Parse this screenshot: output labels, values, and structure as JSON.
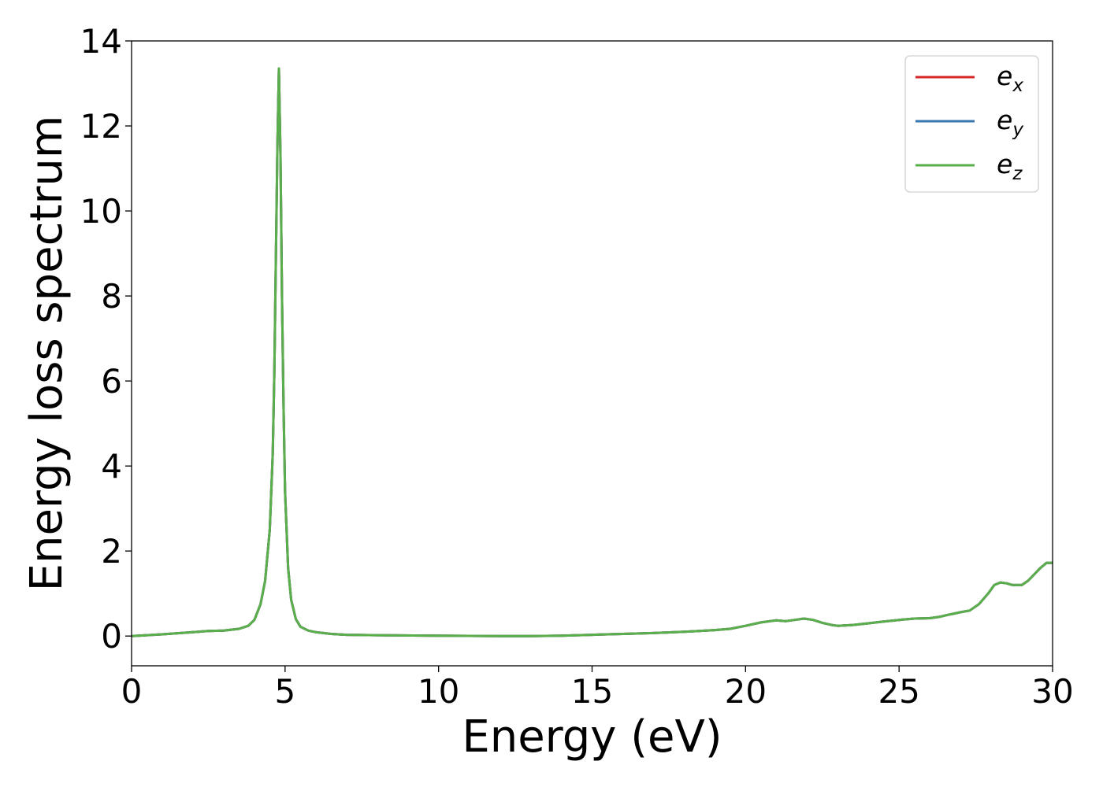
{
  "chart_data": {
    "type": "line",
    "title": "",
    "xlabel": "Energy (eV)",
    "ylabel": "Energy loss spectrum",
    "xlim": [
      0,
      30
    ],
    "ylim": [
      -0.7,
      14
    ],
    "xticks": [
      0,
      5,
      10,
      15,
      20,
      25,
      30
    ],
    "yticks": [
      0,
      2,
      4,
      6,
      8,
      10,
      12,
      14
    ],
    "grid": false,
    "legend_position": "top-right",
    "series": [
      {
        "name": "e_x",
        "label_base": "e",
        "label_sub": "x",
        "color": "#d62728",
        "x": [
          0,
          1,
          2,
          2.5,
          3,
          3.5,
          3.8,
          4.0,
          4.2,
          4.35,
          4.5,
          4.6,
          4.65,
          4.7,
          4.75,
          4.8,
          4.85,
          4.9,
          4.95,
          5.0,
          5.1,
          5.2,
          5.35,
          5.5,
          5.75,
          6,
          6.5,
          7,
          8,
          10,
          12,
          13,
          14,
          15,
          16,
          17,
          18,
          19,
          19.5,
          20,
          20.5,
          21,
          21.3,
          21.6,
          21.9,
          22.2,
          22.5,
          22.8,
          23,
          23.5,
          24,
          24.5,
          25,
          25.5,
          26,
          26.3,
          26.6,
          26.8,
          27.0,
          27.3,
          27.6,
          27.9,
          28.1,
          28.3,
          28.5,
          28.7,
          29,
          29.2,
          29.4,
          29.6,
          29.8,
          30
        ],
        "y": [
          0.0,
          0.04,
          0.09,
          0.12,
          0.13,
          0.17,
          0.24,
          0.38,
          0.75,
          1.3,
          2.5,
          4.3,
          6.2,
          8.8,
          11.5,
          13.35,
          11.3,
          8.0,
          5.4,
          3.4,
          1.6,
          0.85,
          0.4,
          0.22,
          0.13,
          0.09,
          0.05,
          0.03,
          0.02,
          0.01,
          0.0,
          0.0,
          0.01,
          0.03,
          0.05,
          0.07,
          0.1,
          0.14,
          0.17,
          0.24,
          0.32,
          0.37,
          0.35,
          0.38,
          0.41,
          0.38,
          0.31,
          0.26,
          0.24,
          0.26,
          0.3,
          0.34,
          0.38,
          0.41,
          0.42,
          0.45,
          0.5,
          0.53,
          0.56,
          0.6,
          0.75,
          1.0,
          1.2,
          1.26,
          1.24,
          1.2,
          1.2,
          1.3,
          1.45,
          1.6,
          1.72,
          1.72
        ]
      },
      {
        "name": "e_y",
        "label_base": "e",
        "label_sub": "y",
        "color": "#3a76b0",
        "x": [
          0,
          1,
          2,
          2.5,
          3,
          3.5,
          3.8,
          4.0,
          4.2,
          4.35,
          4.5,
          4.6,
          4.65,
          4.7,
          4.75,
          4.8,
          4.85,
          4.9,
          4.95,
          5.0,
          5.1,
          5.2,
          5.35,
          5.5,
          5.75,
          6,
          6.5,
          7,
          8,
          10,
          12,
          13,
          14,
          15,
          16,
          17,
          18,
          19,
          19.5,
          20,
          20.5,
          21,
          21.3,
          21.6,
          21.9,
          22.2,
          22.5,
          22.8,
          23,
          23.5,
          24,
          24.5,
          25,
          25.5,
          26,
          26.3,
          26.6,
          26.8,
          27.0,
          27.3,
          27.6,
          27.9,
          28.1,
          28.3,
          28.5,
          28.7,
          29,
          29.2,
          29.4,
          29.6,
          29.8,
          30
        ],
        "y": [
          0.0,
          0.04,
          0.09,
          0.12,
          0.13,
          0.17,
          0.24,
          0.38,
          0.75,
          1.3,
          2.5,
          4.3,
          6.2,
          8.8,
          11.5,
          13.35,
          11.3,
          8.0,
          5.4,
          3.4,
          1.6,
          0.85,
          0.4,
          0.22,
          0.13,
          0.09,
          0.05,
          0.03,
          0.02,
          0.01,
          0.0,
          0.0,
          0.01,
          0.03,
          0.05,
          0.07,
          0.1,
          0.14,
          0.17,
          0.24,
          0.32,
          0.37,
          0.35,
          0.38,
          0.41,
          0.38,
          0.31,
          0.26,
          0.24,
          0.26,
          0.3,
          0.34,
          0.38,
          0.41,
          0.42,
          0.45,
          0.5,
          0.53,
          0.56,
          0.6,
          0.75,
          1.0,
          1.2,
          1.26,
          1.24,
          1.2,
          1.2,
          1.3,
          1.45,
          1.6,
          1.72,
          1.72
        ]
      },
      {
        "name": "e_z",
        "label_base": "e",
        "label_sub": "z",
        "color": "#5aae4c",
        "x": [
          0,
          1,
          2,
          2.5,
          3,
          3.5,
          3.8,
          4.0,
          4.2,
          4.35,
          4.5,
          4.6,
          4.65,
          4.7,
          4.75,
          4.8,
          4.85,
          4.9,
          4.95,
          5.0,
          5.1,
          5.2,
          5.35,
          5.5,
          5.75,
          6,
          6.5,
          7,
          8,
          10,
          12,
          13,
          14,
          15,
          16,
          17,
          18,
          19,
          19.5,
          20,
          20.5,
          21,
          21.3,
          21.6,
          21.9,
          22.2,
          22.5,
          22.8,
          23,
          23.5,
          24,
          24.5,
          25,
          25.5,
          26,
          26.3,
          26.6,
          26.8,
          27.0,
          27.3,
          27.6,
          27.9,
          28.1,
          28.3,
          28.5,
          28.7,
          29,
          29.2,
          29.4,
          29.6,
          29.8,
          30
        ],
        "y": [
          0.0,
          0.04,
          0.09,
          0.12,
          0.13,
          0.17,
          0.24,
          0.38,
          0.75,
          1.3,
          2.5,
          4.3,
          6.2,
          8.8,
          11.5,
          13.35,
          11.3,
          8.0,
          5.4,
          3.4,
          1.6,
          0.85,
          0.4,
          0.22,
          0.13,
          0.09,
          0.05,
          0.03,
          0.02,
          0.01,
          0.0,
          0.0,
          0.01,
          0.03,
          0.05,
          0.07,
          0.1,
          0.14,
          0.17,
          0.24,
          0.32,
          0.37,
          0.35,
          0.38,
          0.41,
          0.38,
          0.31,
          0.26,
          0.24,
          0.26,
          0.3,
          0.34,
          0.38,
          0.41,
          0.42,
          0.45,
          0.5,
          0.53,
          0.56,
          0.6,
          0.75,
          1.0,
          1.2,
          1.26,
          1.24,
          1.2,
          1.2,
          1.3,
          1.45,
          1.6,
          1.72,
          1.72
        ]
      }
    ]
  }
}
